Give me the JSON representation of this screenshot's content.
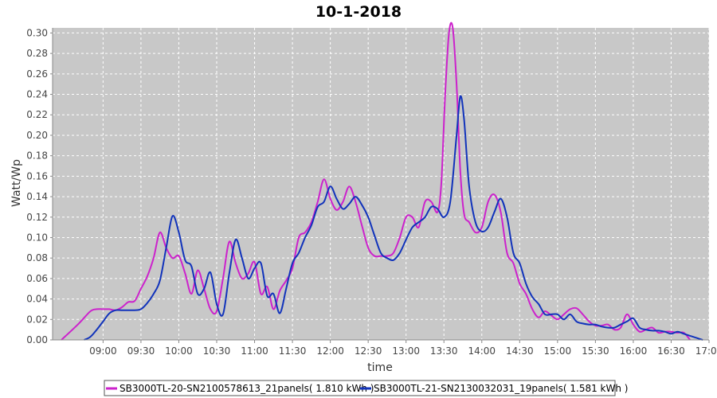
{
  "colors": {
    "plot_bg": "#c8c8c8",
    "grid": "#ffffff",
    "series_1": "#cc22cc",
    "series_2": "#1133bb"
  },
  "chart_data": {
    "type": "line",
    "title": "10-1-2018",
    "xlabel": "time",
    "ylabel": "Watt/Wp",
    "grid": true,
    "legend_position": "bottom",
    "xlim": [
      "08:20",
      "17:00"
    ],
    "ylim": [
      0,
      0.305
    ],
    "x_ticks": [
      "09:00",
      "09:30",
      "10:00",
      "10:30",
      "11:00",
      "11:30",
      "12:00",
      "12:30",
      "13:00",
      "13:30",
      "14:00",
      "14:30",
      "15:00",
      "15:30",
      "16:00",
      "16:30",
      "17:00"
    ],
    "y_ticks": [
      "0.00",
      "0.02",
      "0.04",
      "0.06",
      "0.08",
      "0.10",
      "0.12",
      "0.14",
      "0.16",
      "0.18",
      "0.20",
      "0.22",
      "0.24",
      "0.26",
      "0.28",
      "0.30"
    ],
    "series": [
      {
        "name": "SB3000TL-20-SN2100578613_21panels( 1.810 kWh )",
        "x": [
          "08:27",
          "08:40",
          "08:50",
          "08:55",
          "09:00",
          "09:05",
          "09:10",
          "09:15",
          "09:20",
          "09:25",
          "09:30",
          "09:35",
          "09:40",
          "09:45",
          "09:50",
          "09:55",
          "10:00",
          "10:05",
          "10:10",
          "10:15",
          "10:20",
          "10:25",
          "10:30",
          "10:35",
          "10:40",
          "10:45",
          "10:50",
          "10:55",
          "11:00",
          "11:05",
          "11:10",
          "11:15",
          "11:20",
          "11:25",
          "11:30",
          "11:35",
          "11:40",
          "11:45",
          "11:50",
          "11:55",
          "12:00",
          "12:05",
          "12:10",
          "12:15",
          "12:20",
          "12:25",
          "12:30",
          "12:35",
          "12:40",
          "12:45",
          "12:50",
          "12:55",
          "13:00",
          "13:05",
          "13:10",
          "13:15",
          "13:20",
          "13:25",
          "13:28",
          "13:31",
          "13:34",
          "13:37",
          "13:40",
          "13:43",
          "13:46",
          "13:50",
          "13:55",
          "14:00",
          "14:05",
          "14:10",
          "14:15",
          "14:20",
          "14:25",
          "14:30",
          "14:35",
          "14:40",
          "14:45",
          "14:50",
          "14:55",
          "15:00",
          "15:05",
          "15:10",
          "15:15",
          "15:20",
          "15:25",
          "15:30",
          "15:35",
          "15:40",
          "15:45",
          "15:50",
          "15:55",
          "16:00",
          "16:05",
          "16:10",
          "16:15",
          "16:20",
          "16:25",
          "16:30",
          "16:35",
          "16:40",
          "16:45"
        ],
        "y": [
          0.0,
          0.015,
          0.028,
          0.03,
          0.03,
          0.03,
          0.029,
          0.032,
          0.037,
          0.038,
          0.05,
          0.062,
          0.08,
          0.105,
          0.09,
          0.08,
          0.082,
          0.065,
          0.045,
          0.068,
          0.05,
          0.03,
          0.028,
          0.06,
          0.096,
          0.075,
          0.06,
          0.065,
          0.076,
          0.045,
          0.052,
          0.03,
          0.048,
          0.058,
          0.07,
          0.1,
          0.105,
          0.115,
          0.135,
          0.157,
          0.138,
          0.127,
          0.135,
          0.15,
          0.135,
          0.112,
          0.09,
          0.082,
          0.082,
          0.082,
          0.085,
          0.1,
          0.12,
          0.12,
          0.11,
          0.135,
          0.135,
          0.125,
          0.155,
          0.24,
          0.3,
          0.305,
          0.25,
          0.165,
          0.123,
          0.115,
          0.105,
          0.11,
          0.135,
          0.142,
          0.125,
          0.085,
          0.075,
          0.055,
          0.045,
          0.03,
          0.022,
          0.028,
          0.024,
          0.02,
          0.025,
          0.03,
          0.031,
          0.025,
          0.018,
          0.014,
          0.014,
          0.015,
          0.01,
          0.012,
          0.025,
          0.015,
          0.008,
          0.01,
          0.012,
          0.007,
          0.008,
          0.008,
          0.007,
          0.007,
          0.0
        ]
      },
      {
        "name": "SB3000TL-21-SN2130032031_19panels( 1.581 kWh )",
        "x": [
          "08:45",
          "08:50",
          "08:55",
          "09:00",
          "09:05",
          "09:10",
          "09:15",
          "09:20",
          "09:25",
          "09:30",
          "09:35",
          "09:40",
          "09:45",
          "09:50",
          "09:55",
          "10:00",
          "10:05",
          "10:10",
          "10:15",
          "10:20",
          "10:25",
          "10:30",
          "10:35",
          "10:40",
          "10:45",
          "10:50",
          "10:55",
          "11:00",
          "11:05",
          "11:10",
          "11:15",
          "11:20",
          "11:25",
          "11:30",
          "11:35",
          "11:40",
          "11:45",
          "11:50",
          "11:55",
          "12:00",
          "12:05",
          "12:10",
          "12:15",
          "12:20",
          "12:25",
          "12:30",
          "12:35",
          "12:40",
          "12:45",
          "12:50",
          "12:55",
          "13:00",
          "13:05",
          "13:10",
          "13:15",
          "13:20",
          "13:25",
          "13:30",
          "13:35",
          "13:40",
          "13:43",
          "13:46",
          "13:50",
          "13:55",
          "14:00",
          "14:05",
          "14:10",
          "14:15",
          "14:20",
          "14:25",
          "14:30",
          "14:35",
          "14:40",
          "14:45",
          "14:50",
          "14:55",
          "15:00",
          "15:05",
          "15:10",
          "15:15",
          "15:20",
          "15:25",
          "15:30",
          "15:35",
          "15:40",
          "15:45",
          "15:50",
          "15:55",
          "16:00",
          "16:05",
          "16:10",
          "16:15",
          "16:20",
          "16:25",
          "16:30",
          "16:35",
          "16:40",
          "16:45",
          "16:50",
          "16:55"
        ],
        "y": [
          0.0,
          0.003,
          0.01,
          0.018,
          0.026,
          0.029,
          0.029,
          0.029,
          0.029,
          0.03,
          0.036,
          0.045,
          0.058,
          0.09,
          0.121,
          0.105,
          0.078,
          0.072,
          0.045,
          0.05,
          0.066,
          0.035,
          0.025,
          0.065,
          0.098,
          0.08,
          0.06,
          0.07,
          0.075,
          0.043,
          0.045,
          0.026,
          0.05,
          0.075,
          0.085,
          0.1,
          0.112,
          0.13,
          0.135,
          0.15,
          0.138,
          0.128,
          0.133,
          0.14,
          0.132,
          0.12,
          0.102,
          0.085,
          0.08,
          0.078,
          0.085,
          0.098,
          0.11,
          0.115,
          0.12,
          0.13,
          0.128,
          0.12,
          0.135,
          0.2,
          0.238,
          0.215,
          0.15,
          0.115,
          0.106,
          0.11,
          0.125,
          0.138,
          0.12,
          0.085,
          0.075,
          0.055,
          0.042,
          0.035,
          0.025,
          0.025,
          0.025,
          0.02,
          0.025,
          0.018,
          0.016,
          0.015,
          0.015,
          0.013,
          0.012,
          0.012,
          0.015,
          0.018,
          0.021,
          0.012,
          0.01,
          0.009,
          0.009,
          0.008,
          0.006,
          0.008,
          0.006,
          0.004,
          0.002,
          0.0
        ]
      }
    ]
  }
}
